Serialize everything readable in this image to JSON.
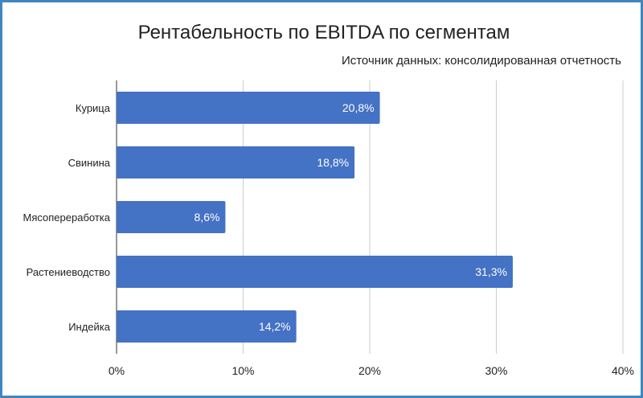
{
  "chart_data": {
    "type": "bar",
    "orientation": "horizontal",
    "title": "Рентабельность по EBITDA по сегментам",
    "subtitle": "Источник данных: консолидированная отчетность",
    "categories": [
      "Курица",
      "Свинина",
      "Мясопереработка",
      "Растениеводство",
      "Индейка"
    ],
    "values": [
      20.8,
      18.8,
      8.6,
      31.3,
      14.2
    ],
    "data_labels": [
      "20,8%",
      "18,8%",
      "8,6%",
      "31,3%",
      "14,2%"
    ],
    "xlim": [
      0,
      40
    ],
    "x_ticks": [
      0,
      10,
      20,
      30,
      40
    ],
    "x_tick_labels": [
      "0%",
      "10%",
      "20%",
      "30%",
      "40%"
    ],
    "xlabel": "",
    "ylabel": "",
    "grid": true,
    "legend": "none",
    "bar_color": "#4472c4",
    "grid_color": "#cccccc",
    "frame_color": "#3f86c0"
  }
}
